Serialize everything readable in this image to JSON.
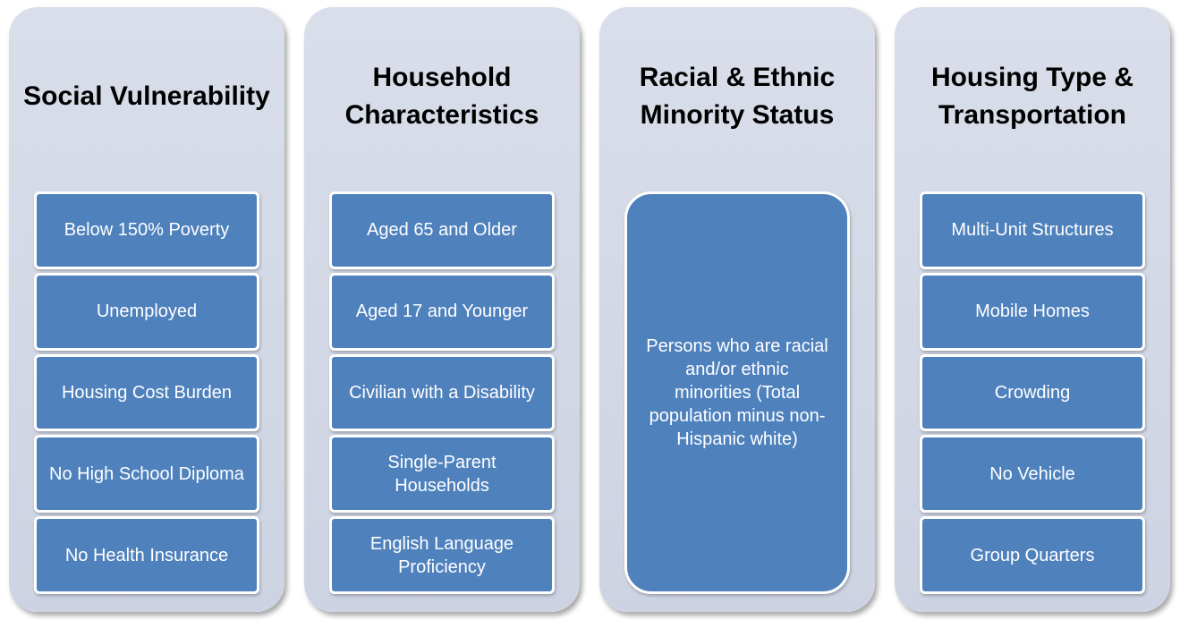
{
  "columns": [
    {
      "title": "Social Vulnerability",
      "items": [
        "Below 150% Poverty",
        "Unemployed",
        "Housing Cost Burden",
        "No High School Diploma",
        "No Health Insurance"
      ]
    },
    {
      "title": "Household Characteristics",
      "items": [
        "Aged 65 and Older",
        "Aged 17 and Younger",
        "Civilian with a Disability",
        "Single-Parent Households",
        "English Language Proficiency"
      ]
    },
    {
      "title": "Racial & Ethnic Minority Status",
      "items": [
        "Persons who are racial and/or ethnic minorities (Total population minus non-Hispanic white)"
      ]
    },
    {
      "title": "Housing Type & Transportation",
      "items": [
        "Multi-Unit Structures",
        "Mobile Homes",
        "Crowding",
        "No Vehicle",
        "Group Quarters"
      ]
    }
  ]
}
